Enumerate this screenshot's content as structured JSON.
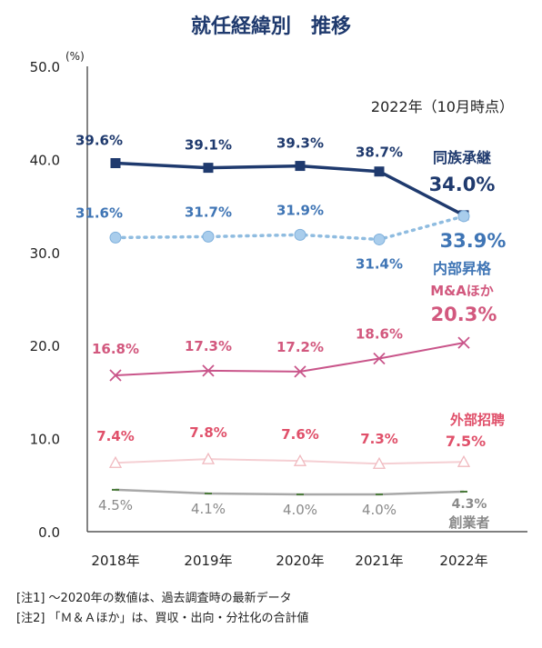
{
  "chart_data": {
    "type": "line",
    "title": "就任経緯別　推移",
    "ylabel": "(%)",
    "ylim": [
      0,
      50
    ],
    "y_ticks": [
      "0.0",
      "10.0",
      "20.0",
      "30.0",
      "40.0",
      "50.0"
    ],
    "categories": [
      "2018年",
      "2019年",
      "2020年",
      "2021年",
      "2022年"
    ],
    "annotation": "2022年（10月時点）",
    "series": [
      {
        "name": "同族承継",
        "color": "#1f3a6e",
        "marker": "square",
        "style": "solid",
        "values": [
          39.6,
          39.1,
          39.3,
          38.7,
          34.0
        ],
        "labels": [
          "39.6%",
          "39.1%",
          "39.3%",
          "38.7%",
          "34.0%"
        ]
      },
      {
        "name": "内部昇格",
        "color": "#3f75b5",
        "line_color": "#8fbce0",
        "marker": "circle",
        "style": "dotted",
        "values": [
          31.6,
          31.7,
          31.9,
          31.4,
          33.9
        ],
        "labels": [
          "31.6%",
          "31.7%",
          "31.9%",
          "31.4%",
          "33.9%"
        ]
      },
      {
        "name": "M&Aほか",
        "color": "#d2587e",
        "line_color": "#c9558a",
        "marker": "x",
        "style": "solid",
        "values": [
          16.8,
          17.3,
          17.2,
          18.6,
          20.3
        ],
        "labels": [
          "16.8%",
          "17.3%",
          "17.2%",
          "18.6%",
          "20.3%"
        ]
      },
      {
        "name": "外部招聘",
        "color": "#e0506a",
        "line_color": "#f5cfd3",
        "marker": "triangle",
        "style": "solid",
        "values": [
          7.4,
          7.8,
          7.6,
          7.3,
          7.5
        ],
        "labels": [
          "7.4%",
          "7.8%",
          "7.6%",
          "7.3%",
          "7.5%"
        ]
      },
      {
        "name": "創業者",
        "color": "#8a8a8a",
        "line_color": "#a8a8a8",
        "marker": "dash",
        "style": "solid",
        "values": [
          4.5,
          4.1,
          4.0,
          4.0,
          4.3
        ],
        "labels": [
          "4.5%",
          "4.1%",
          "4.0%",
          "4.0%",
          "4.3%"
        ]
      }
    ]
  },
  "notes": [
    "[注1] ～2020年の数値は、過去調査時の最新データ",
    "[注2] 「Ｍ＆Ａほか」は、買収・出向・分社化の合計値"
  ]
}
